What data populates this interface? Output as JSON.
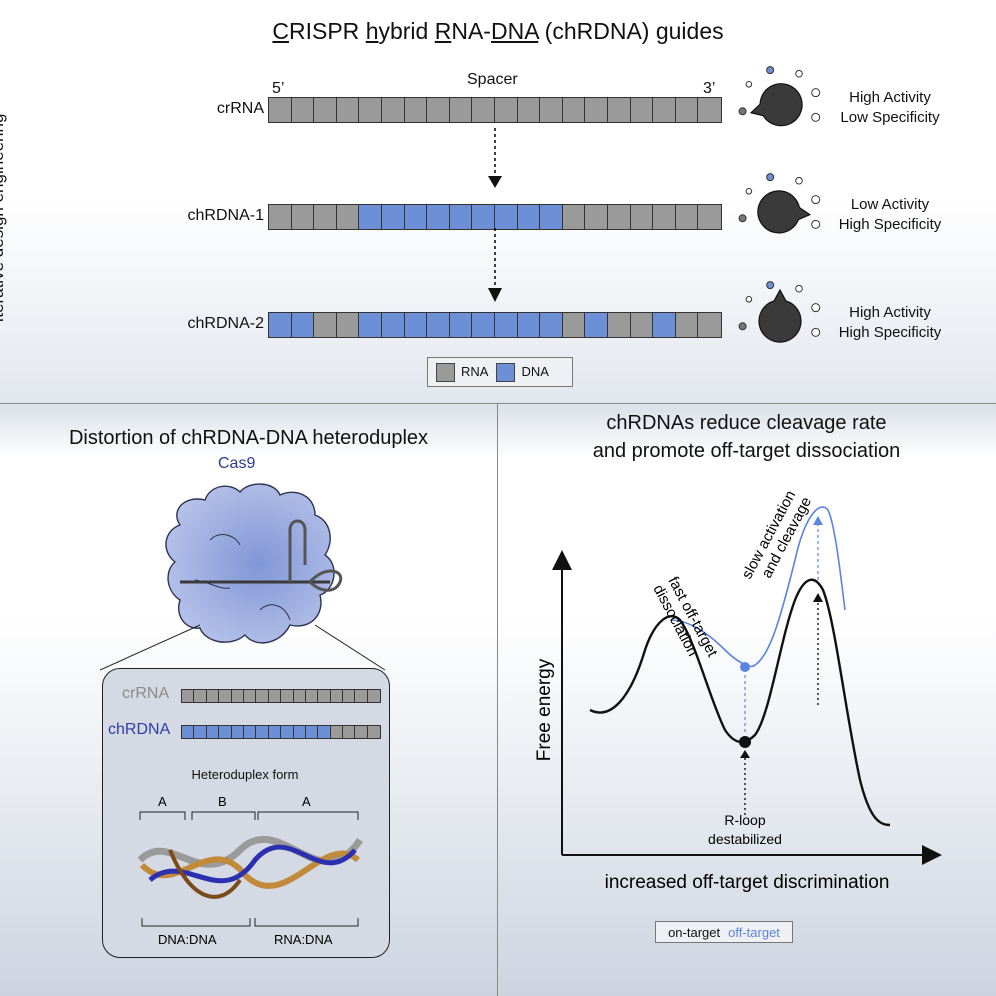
{
  "top": {
    "title_parts": [
      {
        "u": "C",
        "t": "RISPR "
      },
      {
        "u": "h",
        "t": "ybrid "
      },
      {
        "u": "R",
        "t": "NA-"
      },
      {
        "u": "DNA",
        "t": " (chRDNA) guides"
      }
    ],
    "spacer_label": "Spacer",
    "five_prime": "5’",
    "three_prime": "3’",
    "side_label": "Iterative design engineering",
    "rows": [
      {
        "name": "crRNA",
        "pattern": "RRRRRRRRRRRRRRRRRRRR",
        "activity_line1": "High Activity",
        "activity_line2": "Low Specificity",
        "knob_angle": -105
      },
      {
        "name": "chRDNA-1",
        "pattern": "RRRRDDDDDDDDDRRRRRRR",
        "activity_line1": "Low Activity",
        "activity_line2": "High Specificity",
        "knob_angle": 95
      },
      {
        "name": "chRDNA-2",
        "pattern": "DDRRDDDDDDDDDRDRRDRR",
        "activity_line1": "High Activity",
        "activity_line2": "High Specificity",
        "knob_angle": 0
      }
    ],
    "legend": {
      "rna": "RNA",
      "dna": "DNA"
    },
    "colors": {
      "rna": "#9a9a9a",
      "dna": "#6d8fd6"
    }
  },
  "left": {
    "title": "Distortion of chRDNA-DNA heteroduplex",
    "protein_label": "Cas9",
    "crrna_label": "crRNA",
    "chrdna_label": "chRDNA",
    "crrna_pattern": "RRRRRRRRRRRRRRRR",
    "chrdna_pattern": "DDDDDDDDDDDDRRRR",
    "heteroduplex_label": "Heteroduplex form",
    "bracket_top": [
      "A",
      "B",
      "A"
    ],
    "bracket_bottom": [
      "DNA:DNA",
      "RNA:DNA"
    ]
  },
  "right": {
    "title_line1": "chRDNAs reduce cleavage rate",
    "title_line2": "and promote off-target dissociation",
    "ylabel": "Free energy",
    "xlabel": "increased off-target discrimination",
    "annot_fast": [
      "fast off-target",
      "dissociation"
    ],
    "annot_slow": [
      "slow activation",
      "and cleavage"
    ],
    "annot_rloop": [
      "R-loop",
      "destabilized"
    ],
    "legend_on": "on-target",
    "legend_off": "off-target",
    "color_on": "#111111",
    "color_off": "#5b84e0"
  }
}
